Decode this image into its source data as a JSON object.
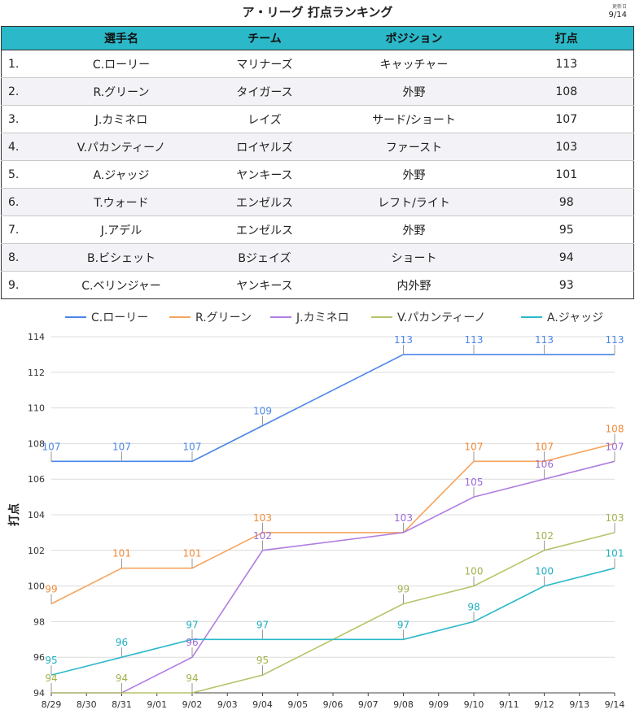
{
  "title": "ア・リーグ 打点ランキング",
  "updated": {
    "label": "更新日",
    "date": "9/14"
  },
  "table": {
    "headers": [
      "",
      "選手名",
      "チーム",
      "ポジション",
      "打点"
    ],
    "rows": [
      {
        "rank": "1.",
        "name": "C.ローリー",
        "team": "マリナーズ",
        "position": "キャッチャー",
        "rbi": "113"
      },
      {
        "rank": "2.",
        "name": "R.グリーン",
        "team": "タイガース",
        "position": "外野",
        "rbi": "108"
      },
      {
        "rank": "3.",
        "name": "J.カミネロ",
        "team": "レイズ",
        "position": "サード/ショート",
        "rbi": "107"
      },
      {
        "rank": "4.",
        "name": "V.パカンティーノ",
        "team": "ロイヤルズ",
        "position": "ファースト",
        "rbi": "103"
      },
      {
        "rank": "5.",
        "name": "A.ジャッジ",
        "team": "ヤンキース",
        "position": "外野",
        "rbi": "101"
      },
      {
        "rank": "6.",
        "name": "T.ウォード",
        "team": "エンゼルス",
        "position": "レフト/ライト",
        "rbi": "98"
      },
      {
        "rank": "7.",
        "name": "J.アデル",
        "team": "エンゼルス",
        "position": "外野",
        "rbi": "95"
      },
      {
        "rank": "8.",
        "name": "B.ビシェット",
        "team": "Bジェイズ",
        "position": "ショート",
        "rbi": "94"
      },
      {
        "rank": "9.",
        "name": "C.ベリンジャー",
        "team": "ヤンキース",
        "position": "内外野",
        "rbi": "93"
      }
    ]
  },
  "chart_data": {
    "type": "line",
    "ylabel": "打点",
    "xlabel": "",
    "ylim": [
      94,
      114
    ],
    "yticks": [
      94,
      96,
      98,
      100,
      102,
      104,
      106,
      108,
      110,
      112,
      114
    ],
    "x": [
      "8/29",
      "8/30",
      "8/31",
      "9/01",
      "9/02",
      "9/03",
      "9/04",
      "9/05",
      "9/06",
      "9/07",
      "9/08",
      "9/09",
      "9/10",
      "9/11",
      "9/12",
      "9/13",
      "9/14"
    ],
    "legend_position": "top",
    "grid": "horizontal",
    "series": [
      {
        "name": "C.ローリー",
        "color": "#4a86e8",
        "labelColor": "#4a86e8",
        "points": [
          [
            0,
            107
          ],
          [
            2,
            107
          ],
          [
            4,
            107
          ],
          [
            6,
            109
          ],
          [
            10,
            113
          ],
          [
            12,
            113
          ],
          [
            14,
            113
          ],
          [
            16,
            113
          ]
        ],
        "labels": [
          [
            0,
            "107"
          ],
          [
            2,
            "107"
          ],
          [
            4,
            "107"
          ],
          [
            6,
            "109"
          ],
          [
            10,
            "113"
          ],
          [
            12,
            "113"
          ],
          [
            14,
            "113"
          ],
          [
            16,
            "113"
          ]
        ]
      },
      {
        "name": "R.グリーン",
        "color": "#f6a45c",
        "labelColor": "#f08a38",
        "points": [
          [
            0,
            99
          ],
          [
            2,
            101
          ],
          [
            4,
            101
          ],
          [
            6,
            103
          ],
          [
            10,
            103
          ],
          [
            12,
            107
          ],
          [
            14,
            107
          ],
          [
            16,
            108
          ]
        ],
        "labels": [
          [
            0,
            "99"
          ],
          [
            2,
            "101"
          ],
          [
            4,
            "101"
          ],
          [
            6,
            "103"
          ],
          [
            12,
            "107"
          ],
          [
            14,
            "107"
          ],
          [
            16,
            "108"
          ]
        ]
      },
      {
        "name": "J.カミネロ",
        "color": "#b07ee0",
        "labelColor": "#9b6ad6",
        "points": [
          [
            0,
            94
          ],
          [
            2,
            94
          ],
          [
            4,
            96
          ],
          [
            6,
            102
          ],
          [
            10,
            103
          ],
          [
            12,
            105
          ],
          [
            14,
            106
          ],
          [
            16,
            107
          ]
        ],
        "labels": [
          [
            4,
            "96"
          ],
          [
            6,
            "102"
          ],
          [
            10,
            "103"
          ],
          [
            12,
            "105"
          ],
          [
            14,
            "106"
          ],
          [
            16,
            "107"
          ]
        ]
      },
      {
        "name": "V.パカンティーノ",
        "color": "#b5c46a",
        "labelColor": "#a3b24e",
        "points": [
          [
            0,
            94
          ],
          [
            2,
            94
          ],
          [
            4,
            94
          ],
          [
            6,
            95
          ],
          [
            10,
            99
          ],
          [
            12,
            100
          ],
          [
            14,
            102
          ],
          [
            16,
            103
          ]
        ],
        "labels": [
          [
            0,
            "94"
          ],
          [
            2,
            "94"
          ],
          [
            4,
            "94"
          ],
          [
            6,
            "95"
          ],
          [
            10,
            "99"
          ],
          [
            12,
            "100"
          ],
          [
            14,
            "102"
          ],
          [
            16,
            "103"
          ]
        ]
      },
      {
        "name": "A.ジャッジ",
        "color": "#2bb9c9",
        "labelColor": "#1fb0c0",
        "points": [
          [
            0,
            95
          ],
          [
            2,
            96
          ],
          [
            4,
            97
          ],
          [
            6,
            97
          ],
          [
            10,
            97
          ],
          [
            12,
            98
          ],
          [
            14,
            100
          ],
          [
            16,
            101
          ]
        ],
        "labels": [
          [
            0,
            "95"
          ],
          [
            2,
            "96"
          ],
          [
            4,
            "97"
          ],
          [
            6,
            "97"
          ],
          [
            10,
            "97"
          ],
          [
            12,
            "98"
          ],
          [
            14,
            "100"
          ],
          [
            16,
            "101"
          ]
        ]
      }
    ]
  }
}
